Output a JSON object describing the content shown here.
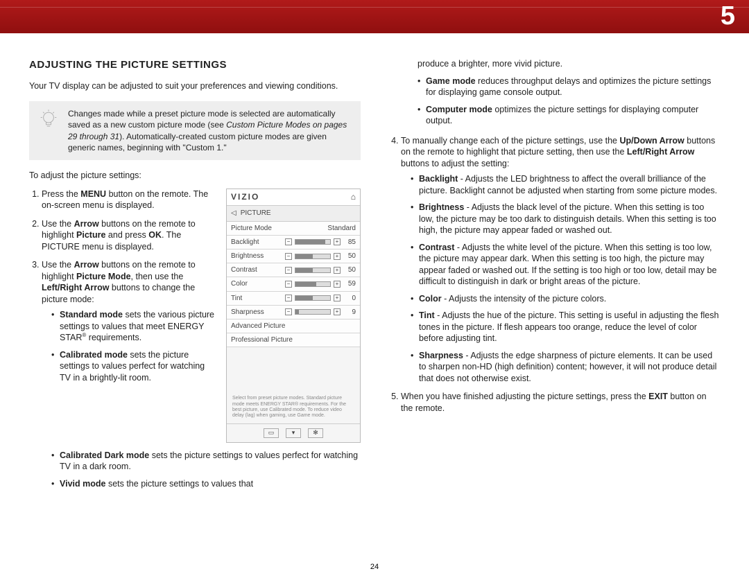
{
  "chapter_number": "5",
  "page_number": "24",
  "heading": "ADJUSTING THE PICTURE SETTINGS",
  "intro": "Your TV display can be adjusted to suit your preferences and viewing conditions.",
  "tip": {
    "pre": "Changes made while a preset picture mode is selected are automatically saved as a new custom picture mode (see ",
    "italic": "Custom Picture Modes on pages 29 through 31",
    "post": "). Automatically-created custom picture modes are given generic names, beginning with \"Custom 1.\""
  },
  "to_adjust": "To adjust the picture settings:",
  "steps": {
    "s1_a": "Press the ",
    "s1_b": "MENU",
    "s1_c": " button on the remote. The on-screen menu is displayed.",
    "s2_a": "Use the ",
    "s2_b": "Arrow",
    "s2_c": " buttons on the remote to highlight ",
    "s2_d": "Picture",
    "s2_e": " and press ",
    "s2_f": "OK",
    "s2_g": ". The PICTURE menu is displayed.",
    "s3_a": "Use the ",
    "s3_b": "Arrow",
    "s3_c": " buttons on the remote to highlight ",
    "s3_d": "Picture Mode",
    "s3_e": ", then use the ",
    "s3_f": "Left/Right Arrow",
    "s3_g": " buttons to change the picture mode:"
  },
  "modes": {
    "std_a": "Standard mode",
    "std_b": " sets the various picture settings to values that meet ENERGY STAR",
    "std_sup": "®",
    "std_c": " requirements.",
    "cal_a": "Calibrated mode",
    "cal_b": " sets the picture settings to values perfect for watching TV in a brightly-lit room.",
    "cald_a": "Calibrated Dark mode",
    "cald_b": " sets the picture settings to values perfect for watching TV in a dark room.",
    "viv_a": "Vivid mode",
    "viv_b": " sets the picture settings to values that"
  },
  "menu": {
    "brand": "VIZIO",
    "section": "PICTURE",
    "picmode_label": "Picture Mode",
    "picmode_val": "Standard",
    "rows": [
      {
        "label": "Backlight",
        "val": "85",
        "pct": 85
      },
      {
        "label": "Brightness",
        "val": "50",
        "pct": 50
      },
      {
        "label": "Contrast",
        "val": "50",
        "pct": 50
      },
      {
        "label": "Color",
        "val": "59",
        "pct": 59
      },
      {
        "label": "Tint",
        "val": "0",
        "pct": 50
      },
      {
        "label": "Sharpness",
        "val": "9",
        "pct": 9
      }
    ],
    "adv": "Advanced Picture",
    "pro": "Professional Picture",
    "footer": "Select from preset picture modes. Standard picture mode meets ENERGY STAR® requirements. For the best picture, use Calibrated mode. To reduce video delay (lag) when gaming, use Game mode."
  },
  "right_top": "produce a brighter, more vivid picture.",
  "right_modes": {
    "game_a": "Game mode",
    "game_b": " reduces throughput delays and optimizes the picture settings for displaying game console output.",
    "comp_a": "Computer mode",
    "comp_b": " optimizes the picture settings for displaying computer output."
  },
  "step4": {
    "a": "To manually change each of the picture settings, use the ",
    "b": "Up/Down Arrow",
    "c": " buttons on the remote to highlight that picture setting, then use the ",
    "d": "Left/Right Arrow",
    "e": " buttons to adjust the setting:"
  },
  "settings": {
    "back_a": "Backlight",
    "back_b": " - Adjusts the LED brightness to affect the overall brilliance of the picture. Backlight cannot be adjusted when starting from some picture modes.",
    "bri_a": "Brightness",
    "bri_b": " - Adjusts the black level of the picture. When this setting is too low, the picture may be too dark to distinguish details. When this setting is too high, the picture may appear faded or washed out.",
    "con_a": "Contrast",
    "con_b": " - Adjusts the white level of the picture. When this setting is too low, the picture may appear dark. When this setting is too high, the picture may appear faded or washed out. If the setting is too high or too low, detail may be difficult to distinguish in dark or bright areas of the picture.",
    "col_a": "Color",
    "col_b": " - Adjusts the intensity of the picture colors.",
    "tint_a": "Tint",
    "tint_b": " - Adjusts the hue of the picture. This setting is useful in adjusting the flesh tones in the picture. If flesh appears too orange, reduce the level of color before adjusting tint.",
    "sha_a": "Sharpness",
    "sha_b": " - Adjusts the edge sharpness of picture elements. It can be used to sharpen non-HD (high definition) content; however, it will not produce detail that does not otherwise exist."
  },
  "step5": {
    "a": "When you have finished adjusting the picture settings, press the ",
    "b": "EXIT",
    "c": " button on the remote."
  }
}
